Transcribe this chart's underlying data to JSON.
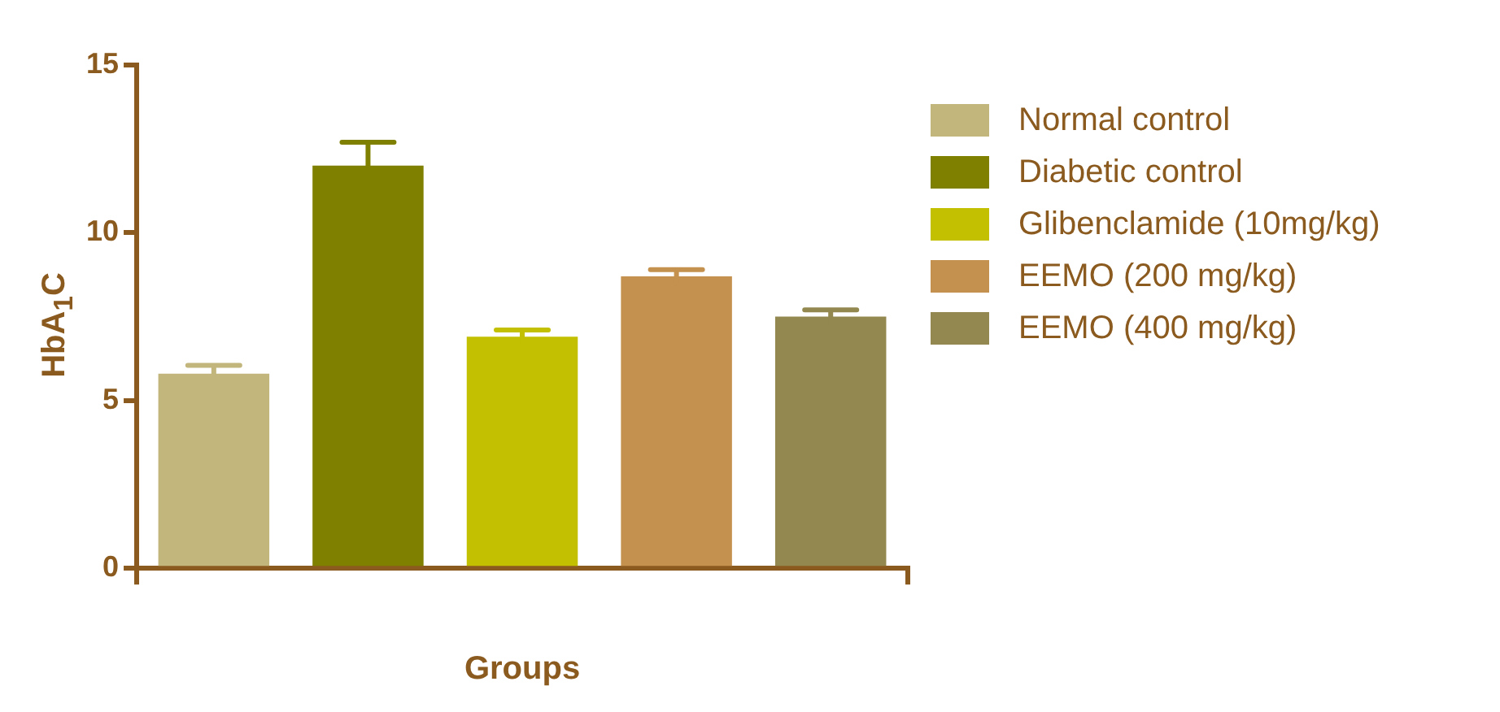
{
  "chart_data": {
    "type": "bar",
    "xlabel": "Groups",
    "ylabel": "HbA$_{1}$C",
    "categories": [
      null
    ],
    "series": [
      {
        "name": "Normal control",
        "color": "#c2b67c",
        "values": [
          5.8
        ],
        "errors": [
          0.25
        ]
      },
      {
        "name": "Diabetic control",
        "color": "#808000",
        "values": [
          12.0
        ],
        "errors": [
          0.7
        ]
      },
      {
        "name": "Glibenclamide (10mg/kg)",
        "color": "#c2c000",
        "values": [
          6.9
        ],
        "errors": [
          0.2
        ]
      },
      {
        "name": "EEMO (200 mg/kg)",
        "color": "#c4914e",
        "values": [
          8.7
        ],
        "errors": [
          0.2
        ]
      },
      {
        "name": "EEMO (400 mg/kg)",
        "color": "#938850",
        "values": [
          7.5
        ],
        "errors": [
          0.2
        ]
      }
    ],
    "ylim": [
      0,
      15
    ],
    "yticks": [
      0,
      5,
      10,
      15
    ],
    "grid": false,
    "legend": "right"
  }
}
